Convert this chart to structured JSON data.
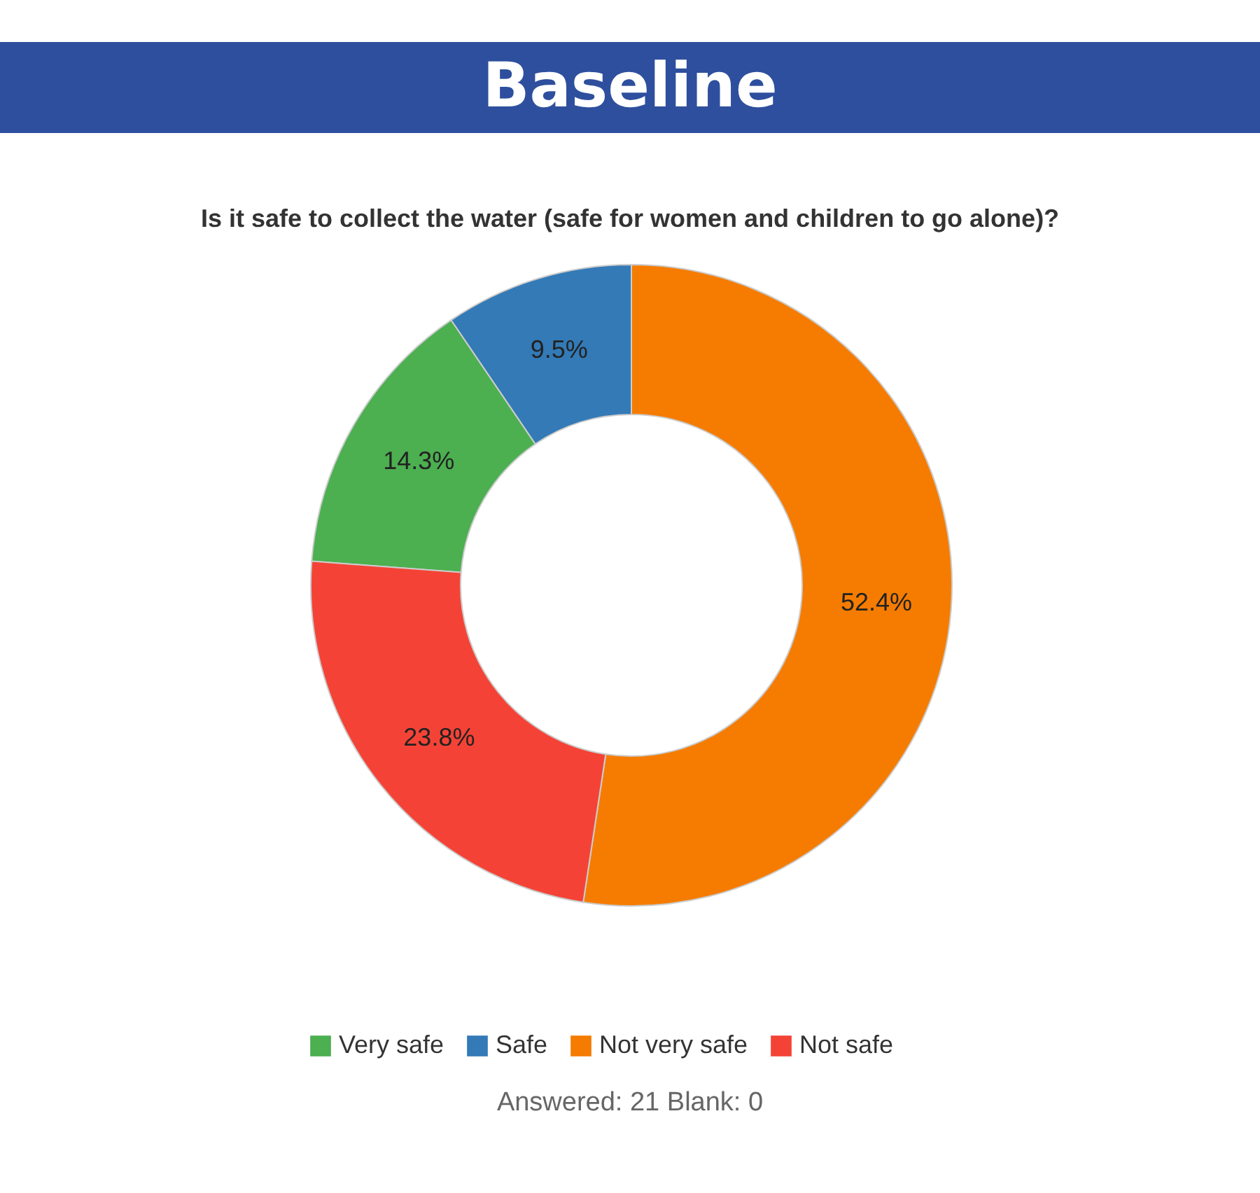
{
  "chart_data": {
    "type": "donut",
    "title": "Baseline",
    "subtitle": "Is it safe to collect the water (safe for women and children to go alone)?",
    "categories": [
      "Very safe",
      "Safe",
      "Not very safe",
      "Not safe"
    ],
    "values": [
      14.3,
      9.5,
      52.4,
      23.8
    ],
    "colors": [
      "#4caf50",
      "#337ab7",
      "#f57c00",
      "#f44336"
    ],
    "value_labels": [
      "14.3%",
      "9.5%",
      "52.4%",
      "23.8%"
    ],
    "legend": "bottom",
    "annotations": [
      "Answered: 21 Blank: 0"
    ]
  }
}
